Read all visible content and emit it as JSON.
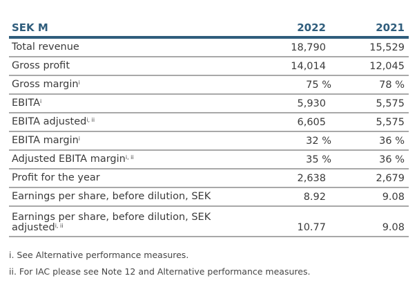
{
  "header": {
    "label": "SEK M",
    "col1": "2022",
    "col2": "2021"
  },
  "rows": [
    {
      "label": "Total revenue",
      "sup": "",
      "v2022": "18,790",
      "v2021": "15,529"
    },
    {
      "label": "Gross profit",
      "sup": "",
      "v2022": "14,014",
      "v2021": "12,045"
    },
    {
      "label": "Gross margin",
      "sup": "i",
      "v2022": "75 %",
      "v2021": "78 %"
    },
    {
      "label": "EBITA",
      "sup": "i",
      "v2022": "5,930",
      "v2021": "5,575"
    },
    {
      "label": "EBITA adjusted",
      "sup": "i, ii",
      "v2022": "6,605",
      "v2021": "5,575"
    },
    {
      "label": "EBITA margin",
      "sup": "i",
      "v2022": "32 %",
      "v2021": "36 %"
    },
    {
      "label": "Adjusted EBITA margin",
      "sup": "i, ii",
      "v2022": "35 %",
      "v2021": "36 %"
    },
    {
      "label": "Profit for the year",
      "sup": "",
      "v2022": "2,638",
      "v2021": "2,679"
    },
    {
      "label": "Earnings per share, before dilution, SEK",
      "sup": "",
      "v2022": "8.92",
      "v2021": "9.08"
    },
    {
      "label": "Earnings per share, before dilution, SEK adjusted",
      "sup": "i, ii",
      "v2022": "10.77",
      "v2021": "9.08"
    }
  ],
  "footnotes": [
    "i. See Alternative performance measures.",
    "ii. For IAC please see Note 12 and Alternative performance measures."
  ],
  "colors": {
    "accent": "#2f5d7c",
    "rule": "#a8a8a8"
  }
}
